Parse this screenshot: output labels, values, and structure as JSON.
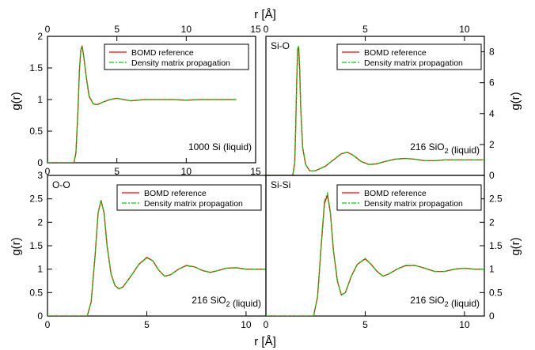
{
  "chart_data": [
    {
      "type": "line",
      "annotation": "1000 Si (liquid)",
      "xlim": [
        0,
        15
      ],
      "ylim": [
        0,
        2
      ],
      "xticks": [
        0,
        5,
        10,
        15
      ],
      "yticks": [
        0,
        0.5,
        1,
        1.5,
        2
      ],
      "xticks_top": [
        0,
        5,
        10,
        15
      ],
      "legend": [
        "BOMD reference",
        "Density matrix propagation"
      ],
      "legend_position": "top-right",
      "series": [
        {
          "name": "BOMD reference",
          "color": "#ff0000",
          "x": [
            0,
            1.9,
            2.05,
            2.2,
            2.3,
            2.4,
            2.5,
            2.6,
            2.8,
            3.0,
            3.3,
            3.6,
            4.0,
            4.5,
            5.0,
            5.5,
            6.0,
            6.5,
            7.0,
            8.0,
            9.0,
            10.0,
            11.0,
            12.0,
            13.0,
            13.6
          ],
          "y": [
            0,
            0,
            0.15,
            0.85,
            1.45,
            1.78,
            1.85,
            1.7,
            1.35,
            1.05,
            0.93,
            0.92,
            0.96,
            1.0,
            1.02,
            1.0,
            0.98,
            0.99,
            1.0,
            1.0,
            1.0,
            0.99,
            1.0,
            1.0,
            1.0,
            1.0
          ]
        },
        {
          "name": "Density matrix propagation",
          "color": "#00cc00",
          "x": [
            0,
            1.9,
            2.05,
            2.2,
            2.3,
            2.4,
            2.5,
            2.6,
            2.8,
            3.0,
            3.3,
            3.6,
            4.0,
            4.5,
            5.0,
            5.5,
            6.0,
            6.5,
            7.0,
            8.0,
            9.0,
            10.0,
            11.0,
            12.0,
            13.0,
            13.6
          ],
          "y": [
            0,
            0,
            0.14,
            0.84,
            1.44,
            1.77,
            1.84,
            1.7,
            1.36,
            1.06,
            0.93,
            0.92,
            0.96,
            1.0,
            1.02,
            1.0,
            0.98,
            0.99,
            1.0,
            1.0,
            1.0,
            0.99,
            1.0,
            1.0,
            1.0,
            1.0
          ]
        }
      ]
    },
    {
      "type": "line",
      "annotation": "216 SiO2 (liquid)",
      "label": "Si-O",
      "xlim": [
        0,
        11
      ],
      "ylim": [
        0,
        9
      ],
      "xticks_top": [
        0,
        5,
        10
      ],
      "yticks_right": [
        0,
        2,
        4,
        6,
        8
      ],
      "legend": [
        "BOMD reference",
        "Density matrix propagation"
      ],
      "legend_position": "top-right",
      "series": [
        {
          "name": "BOMD reference",
          "color": "#ff0000",
          "x": [
            0,
            1.35,
            1.45,
            1.5,
            1.55,
            1.6,
            1.65,
            1.7,
            1.75,
            1.85,
            2.0,
            2.2,
            2.5,
            3.0,
            3.5,
            3.8,
            4.1,
            4.4,
            4.8,
            5.2,
            5.6,
            6.0,
            6.5,
            7.0,
            7.5,
            8.0,
            8.5,
            9.0,
            9.5,
            10.0,
            10.5,
            11.0
          ],
          "y": [
            0,
            0,
            0.8,
            3.0,
            6.0,
            8.1,
            8.3,
            6.8,
            4.5,
            1.8,
            0.7,
            0.3,
            0.3,
            0.6,
            1.1,
            1.4,
            1.5,
            1.3,
            0.9,
            0.7,
            0.75,
            0.9,
            1.05,
            1.1,
            1.05,
            0.95,
            0.95,
            1.0,
            1.0,
            1.0,
            1.0,
            1.0
          ]
        },
        {
          "name": "Density matrix propagation",
          "color": "#00cc00",
          "x": [
            0,
            1.35,
            1.45,
            1.5,
            1.55,
            1.6,
            1.65,
            1.7,
            1.75,
            1.85,
            2.0,
            2.2,
            2.5,
            3.0,
            3.5,
            3.8,
            4.1,
            4.4,
            4.8,
            5.2,
            5.6,
            6.0,
            6.5,
            7.0,
            7.5,
            8.0,
            8.5,
            9.0,
            9.5,
            10.0,
            10.5,
            11.0
          ],
          "y": [
            0,
            0,
            0.8,
            3.1,
            6.1,
            8.2,
            8.4,
            6.9,
            4.5,
            1.8,
            0.7,
            0.3,
            0.3,
            0.6,
            1.1,
            1.4,
            1.5,
            1.3,
            0.9,
            0.7,
            0.75,
            0.9,
            1.05,
            1.1,
            1.05,
            0.95,
            0.95,
            1.0,
            1.0,
            1.0,
            1.0,
            1.0
          ]
        }
      ]
    },
    {
      "type": "line",
      "annotation": "216 SiO2 (liquid)",
      "label": "O-O",
      "xlim": [
        0,
        11
      ],
      "ylim": [
        0,
        3
      ],
      "xticks": [
        0,
        5,
        10
      ],
      "yticks": [
        0,
        0.5,
        1,
        1.5,
        2,
        2.5,
        3
      ],
      "legend": [
        "BOMD reference",
        "Density matrix propagation"
      ],
      "legend_position": "top-right",
      "series": [
        {
          "name": "BOMD reference",
          "color": "#ff0000",
          "x": [
            0,
            2.0,
            2.2,
            2.4,
            2.55,
            2.7,
            2.85,
            3.0,
            3.2,
            3.4,
            3.6,
            3.8,
            4.2,
            4.6,
            5.0,
            5.3,
            5.6,
            5.9,
            6.2,
            6.6,
            7.0,
            7.4,
            7.8,
            8.2,
            8.6,
            9.0,
            9.5,
            10.0,
            10.5,
            11.0
          ],
          "y": [
            0,
            0,
            0.3,
            1.3,
            2.2,
            2.47,
            2.2,
            1.5,
            0.9,
            0.65,
            0.58,
            0.62,
            0.85,
            1.1,
            1.25,
            1.18,
            0.98,
            0.85,
            0.88,
            1.0,
            1.08,
            1.05,
            0.97,
            0.93,
            0.97,
            1.02,
            1.03,
            1.0,
            1.0,
            1.0
          ]
        },
        {
          "name": "Density matrix propagation",
          "color": "#00cc00",
          "x": [
            0,
            2.0,
            2.2,
            2.4,
            2.55,
            2.7,
            2.85,
            3.0,
            3.2,
            3.4,
            3.6,
            3.8,
            4.2,
            4.6,
            5.0,
            5.3,
            5.6,
            5.9,
            6.2,
            6.6,
            7.0,
            7.4,
            7.8,
            8.2,
            8.6,
            9.0,
            9.5,
            10.0,
            10.5,
            11.0
          ],
          "y": [
            0,
            0,
            0.3,
            1.3,
            2.2,
            2.46,
            2.2,
            1.5,
            0.9,
            0.65,
            0.58,
            0.62,
            0.85,
            1.1,
            1.24,
            1.18,
            0.98,
            0.85,
            0.88,
            1.0,
            1.07,
            1.05,
            0.97,
            0.93,
            0.97,
            1.02,
            1.03,
            1.0,
            1.0,
            1.0
          ]
        }
      ]
    },
    {
      "type": "line",
      "annotation": "216 SiO2 (liquid)",
      "label": "Si-Si",
      "xlim": [
        0,
        11
      ],
      "ylim": [
        0,
        3
      ],
      "xticks": [
        0,
        5,
        10
      ],
      "yticks_right": [
        0,
        0.5,
        1,
        1.5,
        2,
        2.5
      ],
      "legend": [
        "BOMD reference",
        "Density matrix propagation"
      ],
      "legend_position": "top-right",
      "series": [
        {
          "name": "BOMD reference",
          "color": "#ff0000",
          "x": [
            0,
            2.4,
            2.6,
            2.8,
            2.95,
            3.1,
            3.25,
            3.4,
            3.6,
            3.8,
            4.0,
            4.3,
            4.6,
            5.0,
            5.3,
            5.6,
            5.9,
            6.2,
            6.6,
            7.0,
            7.5,
            8.0,
            8.5,
            9.0,
            9.5,
            10.0,
            10.5,
            11.0
          ],
          "y": [
            0,
            0,
            0.4,
            1.6,
            2.4,
            2.58,
            2.2,
            1.4,
            0.75,
            0.45,
            0.5,
            0.85,
            1.1,
            1.22,
            1.1,
            0.95,
            0.85,
            0.9,
            1.0,
            1.07,
            1.08,
            1.02,
            0.95,
            0.95,
            1.0,
            1.02,
            1.0,
            1.0
          ]
        },
        {
          "name": "Density matrix propagation",
          "color": "#00cc00",
          "x": [
            0,
            2.4,
            2.6,
            2.8,
            2.95,
            3.1,
            3.25,
            3.4,
            3.6,
            3.8,
            4.0,
            4.3,
            4.6,
            5.0,
            5.3,
            5.6,
            5.9,
            6.2,
            6.6,
            7.0,
            7.5,
            8.0,
            8.5,
            9.0,
            9.5,
            10.0,
            10.5,
            11.0
          ],
          "y": [
            0,
            0,
            0.4,
            1.6,
            2.45,
            2.62,
            2.2,
            1.4,
            0.75,
            0.45,
            0.5,
            0.85,
            1.1,
            1.23,
            1.1,
            0.95,
            0.85,
            0.9,
            1.0,
            1.08,
            1.08,
            1.02,
            0.95,
            0.95,
            1.0,
            1.02,
            1.0,
            1.0
          ]
        }
      ]
    }
  ],
  "labels": {
    "x_top": "r [Å]",
    "x_bottom": "r [Å]",
    "y_left": "g(r)",
    "y_right": "g(r)"
  }
}
